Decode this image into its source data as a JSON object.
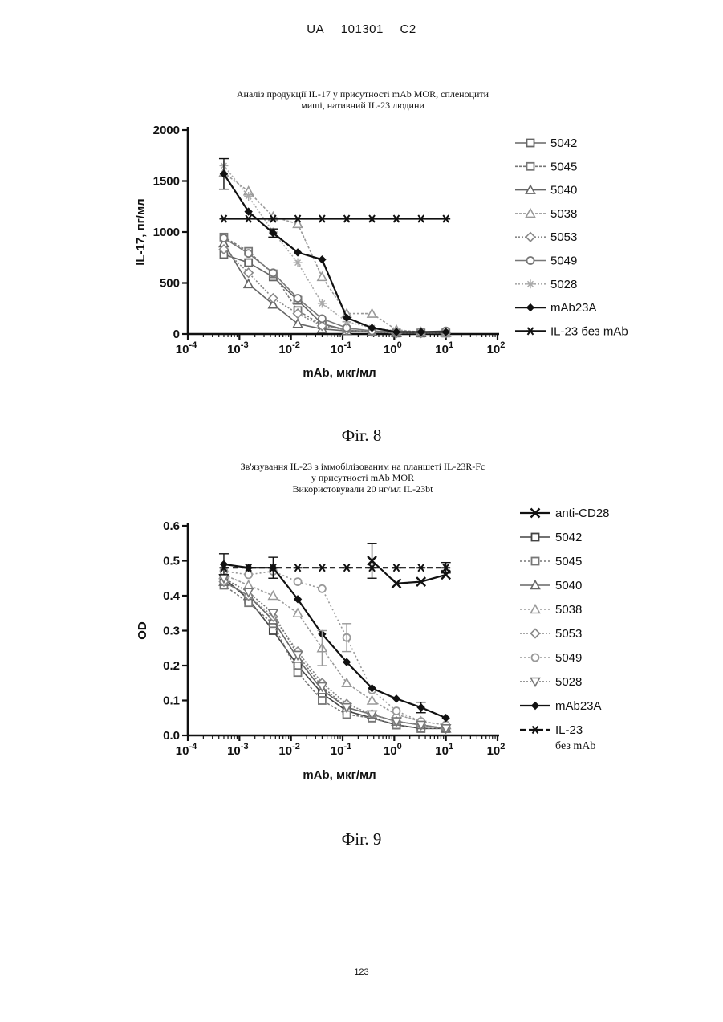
{
  "header": {
    "country": "UA",
    "number": "101301",
    "kind": "C2"
  },
  "page_number": "123",
  "colors": {
    "ink": "#111111",
    "dark": "#1a1a1a",
    "mid": "#555555",
    "light": "#888888",
    "pale": "#aaaaaa"
  },
  "chart_data": [
    {
      "type": "line",
      "title_lines": [
        "Аналіз продукції IL-17 у присутності mAb MOR, спленоцити",
        "миші, нативний IL-23 людини"
      ],
      "xlabel": "mAb, мкг/мл",
      "ylabel": "IL-17, пг/мл",
      "x_scale": "log",
      "xlim": [
        0.0001,
        100
      ],
      "ylim": [
        0,
        2000
      ],
      "x_ticks": [
        {
          "value": 0.0001,
          "base": "10",
          "exp": "-4"
        },
        {
          "value": 0.001,
          "base": "10",
          "exp": "-3"
        },
        {
          "value": 0.01,
          "base": "10",
          "exp": "-2"
        },
        {
          "value": 0.1,
          "base": "10",
          "exp": "-1"
        },
        {
          "value": 1,
          "base": "10",
          "exp": "0"
        },
        {
          "value": 10,
          "base": "10",
          "exp": "1"
        },
        {
          "value": 100,
          "base": "10",
          "exp": "2"
        }
      ],
      "y_ticks": [
        {
          "value": 0,
          "label": "0"
        },
        {
          "value": 500,
          "label": "500"
        },
        {
          "value": 1000,
          "label": "1000"
        },
        {
          "value": 1500,
          "label": "1500"
        },
        {
          "value": 2000,
          "label": "2000"
        }
      ],
      "grid": false,
      "legend_position": "right",
      "caption": "Фіг. 8",
      "series": [
        {
          "name": "5042",
          "color": "#666666",
          "marker": "square",
          "dash": "",
          "x": [
            0.0005,
            0.0015,
            0.0045,
            0.0135,
            0.04,
            0.12,
            0.37,
            1.1,
            3.3,
            10
          ],
          "y": [
            780,
            700,
            560,
            330,
            100,
            40,
            20,
            10,
            10,
            10
          ]
        },
        {
          "name": "5045",
          "color": "#777777",
          "marker": "square",
          "dash": "3,2",
          "x": [
            0.0005,
            0.0015,
            0.0045,
            0.0135,
            0.04,
            0.12,
            0.37,
            1.1,
            3.3,
            10
          ],
          "y": [
            950,
            810,
            590,
            230,
            90,
            40,
            20,
            10,
            10,
            10
          ]
        },
        {
          "name": "5040",
          "color": "#666666",
          "marker": "triangle",
          "dash": "",
          "x": [
            0.0005,
            0.0015,
            0.0045,
            0.0135,
            0.04,
            0.12,
            0.37,
            1.1,
            3.3,
            10
          ],
          "y": [
            890,
            490,
            290,
            100,
            50,
            30,
            20,
            10,
            10,
            10
          ]
        },
        {
          "name": "5038",
          "color": "#999999",
          "marker": "triangle",
          "dash": "3,2",
          "x": [
            0.0005,
            0.0015,
            0.0045,
            0.0135,
            0.04,
            0.12,
            0.37,
            1.1,
            3.3,
            10
          ],
          "y": [
            1580,
            1400,
            1150,
            1080,
            560,
            200,
            200,
            40,
            20,
            10
          ]
        },
        {
          "name": "5053",
          "color": "#888888",
          "marker": "diamond",
          "dash": "2,2",
          "x": [
            0.0005,
            0.0015,
            0.0045,
            0.0135,
            0.04,
            0.12,
            0.37,
            1.1,
            3.3,
            10
          ],
          "y": [
            830,
            600,
            350,
            200,
            80,
            40,
            20,
            10,
            10,
            10
          ]
        },
        {
          "name": "5049",
          "color": "#777777",
          "marker": "circle",
          "dash": "",
          "x": [
            0.0005,
            0.0015,
            0.0045,
            0.0135,
            0.04,
            0.12,
            0.37,
            1.1,
            3.3,
            10
          ],
          "y": [
            940,
            790,
            600,
            350,
            150,
            60,
            30,
            20,
            20,
            30
          ]
        },
        {
          "name": "5028",
          "color": "#aaaaaa",
          "marker": "star",
          "dash": "2,2",
          "x": [
            0.0005,
            0.0015,
            0.0045,
            0.0135,
            0.04,
            0.12,
            0.37,
            1.1,
            3.3,
            10
          ],
          "y": [
            1650,
            1350,
            1000,
            700,
            300,
            120,
            60,
            30,
            20,
            20
          ]
        },
        {
          "name": "mAb23A",
          "color": "#111111",
          "marker": "diamond-filled",
          "dash": "",
          "x": [
            0.0005,
            0.0015,
            0.0045,
            0.0135,
            0.04,
            0.12,
            0.37,
            1.1,
            3.3,
            10
          ],
          "y": [
            1570,
            1200,
            990,
            800,
            730,
            160,
            60,
            20,
            20,
            20
          ]
        },
        {
          "name": "IL-23 без mAb",
          "color": "#111111",
          "marker": "asterisk",
          "dash": "",
          "x": [
            0.0005,
            0.0015,
            0.0045,
            0.0135,
            0.04,
            0.12,
            0.37,
            1.1,
            3.3,
            10
          ],
          "y": [
            1130,
            1130,
            1130,
            1130,
            1130,
            1130,
            1130,
            1130,
            1130,
            1130
          ]
        }
      ],
      "error_bars": [
        {
          "series": "mAb23A",
          "x": 0.0005,
          "y": 1570,
          "plus_minus": 150
        },
        {
          "series": "mAb23A",
          "x": 0.0045,
          "y": 990,
          "plus_minus": 40
        }
      ]
    },
    {
      "type": "line",
      "title_lines": [
        "Зв'язування IL-23 з іммобілізованим на планшеті IL-23R-Fc",
        "у присутності mAb MOR",
        "Використовували 20 нг/мл IL-23bt"
      ],
      "xlabel": "mAb, мкг/мл",
      "ylabel": "OD",
      "x_scale": "log",
      "xlim": [
        0.0001,
        100
      ],
      "ylim": [
        0,
        0.6
      ],
      "x_ticks": [
        {
          "value": 0.0001,
          "base": "10",
          "exp": "-4"
        },
        {
          "value": 0.001,
          "base": "10",
          "exp": "-3"
        },
        {
          "value": 0.01,
          "base": "10",
          "exp": "-2"
        },
        {
          "value": 0.1,
          "base": "10",
          "exp": "-1"
        },
        {
          "value": 1,
          "base": "10",
          "exp": "0"
        },
        {
          "value": 10,
          "base": "10",
          "exp": "1"
        },
        {
          "value": 100,
          "base": "10",
          "exp": "2"
        }
      ],
      "y_ticks": [
        {
          "value": 0,
          "label": "0.0"
        },
        {
          "value": 0.1,
          "label": "0.1"
        },
        {
          "value": 0.2,
          "label": "0.2"
        },
        {
          "value": 0.3,
          "label": "0.3"
        },
        {
          "value": 0.4,
          "label": "0.4"
        },
        {
          "value": 0.5,
          "label": "0.5"
        },
        {
          "value": 0.6,
          "label": "0.6"
        }
      ],
      "grid": false,
      "legend_position": "right",
      "caption": "Фіг. 9",
      "series": [
        {
          "name": "anti-CD28",
          "color": "#111111",
          "marker": "x",
          "dash": "",
          "x": [
            0.37,
            1.1,
            3.3,
            10
          ],
          "y": [
            0.5,
            0.435,
            0.44,
            0.46
          ]
        },
        {
          "name": "5042",
          "color": "#444444",
          "marker": "square",
          "dash": "",
          "x": [
            0.0005,
            0.0015,
            0.0045,
            0.0135,
            0.04,
            0.12,
            0.37,
            1.1,
            3.3,
            10
          ],
          "y": [
            0.45,
            0.39,
            0.3,
            0.2,
            0.12,
            0.07,
            0.05,
            0.03,
            0.02,
            0.02
          ]
        },
        {
          "name": "5045",
          "color": "#777777",
          "marker": "square",
          "dash": "3,2",
          "x": [
            0.0005,
            0.0015,
            0.0045,
            0.0135,
            0.04,
            0.12,
            0.37,
            1.1,
            3.3,
            10
          ],
          "y": [
            0.43,
            0.38,
            0.32,
            0.18,
            0.1,
            0.06,
            0.05,
            0.03,
            0.02,
            0.02
          ]
        },
        {
          "name": "5040",
          "color": "#666666",
          "marker": "triangle",
          "dash": "",
          "x": [
            0.0005,
            0.0015,
            0.0045,
            0.0135,
            0.04,
            0.12,
            0.37,
            1.1,
            3.3,
            10
          ],
          "y": [
            0.44,
            0.4,
            0.33,
            0.22,
            0.13,
            0.08,
            0.06,
            0.04,
            0.03,
            0.02
          ]
        },
        {
          "name": "5038",
          "color": "#999999",
          "marker": "triangle",
          "dash": "3,2",
          "x": [
            0.0005,
            0.0015,
            0.0045,
            0.0135,
            0.04,
            0.12,
            0.37,
            1.1,
            3.3,
            10
          ],
          "y": [
            0.46,
            0.43,
            0.4,
            0.35,
            0.25,
            0.15,
            0.1,
            0.06,
            0.04,
            0.03
          ]
        },
        {
          "name": "5053",
          "color": "#888888",
          "marker": "diamond",
          "dash": "2,2",
          "x": [
            0.0005,
            0.0015,
            0.0045,
            0.0135,
            0.04,
            0.12,
            0.37,
            1.1,
            3.3,
            10
          ],
          "y": [
            0.44,
            0.4,
            0.34,
            0.24,
            0.15,
            0.09,
            0.06,
            0.04,
            0.03,
            0.02
          ]
        },
        {
          "name": "5049",
          "color": "#999999",
          "marker": "circle",
          "dash": "2,3",
          "x": [
            0.0005,
            0.0015,
            0.0045,
            0.0135,
            0.04,
            0.12,
            0.37,
            1.1,
            3.3,
            10
          ],
          "y": [
            0.47,
            0.46,
            0.47,
            0.44,
            0.42,
            0.28,
            0.13,
            0.07,
            0.04,
            0.03
          ]
        },
        {
          "name": "5028",
          "color": "#777777",
          "marker": "triangle-down",
          "dash": "2,2",
          "x": [
            0.0005,
            0.0015,
            0.0045,
            0.0135,
            0.04,
            0.12,
            0.37,
            1.1,
            3.3,
            10
          ],
          "y": [
            0.45,
            0.41,
            0.35,
            0.23,
            0.14,
            0.08,
            0.06,
            0.04,
            0.03,
            0.02
          ]
        },
        {
          "name": "mAb23A",
          "color": "#111111",
          "marker": "diamond-filled",
          "dash": "",
          "x": [
            0.0005,
            0.0015,
            0.0045,
            0.0135,
            0.04,
            0.12,
            0.37,
            1.1,
            3.3,
            10
          ],
          "y": [
            0.49,
            0.48,
            0.48,
            0.39,
            0.29,
            0.21,
            0.135,
            0.105,
            0.08,
            0.05
          ]
        },
        {
          "name": "IL-23 без mAb",
          "color": "#111111",
          "marker": "asterisk",
          "dash": "7,4",
          "x": [
            0.0005,
            0.0015,
            0.0045,
            0.0135,
            0.04,
            0.12,
            0.37,
            1.1,
            3.3,
            10
          ],
          "y": [
            0.48,
            0.48,
            0.48,
            0.48,
            0.48,
            0.48,
            0.48,
            0.48,
            0.48,
            0.48
          ]
        }
      ],
      "error_bars": [
        {
          "series": "mAb23A",
          "x": 0.0005,
          "y": 0.49,
          "plus_minus": 0.03
        },
        {
          "series": "mAb23A",
          "x": 0.0045,
          "y": 0.48,
          "plus_minus": 0.03
        },
        {
          "series": "anti-CD28",
          "x": 0.37,
          "y": 0.5,
          "plus_minus": 0.05
        },
        {
          "series": "IL-23 без mAb",
          "x": 10,
          "y": 0.48,
          "plus_minus": 0.015
        },
        {
          "series": "mAb23A",
          "x": 3.3,
          "y": 0.08,
          "plus_minus": 0.015
        },
        {
          "series": "5038",
          "x": 0.04,
          "y": 0.25,
          "plus_minus": 0.05
        },
        {
          "series": "5049",
          "x": 0.12,
          "y": 0.28,
          "plus_minus": 0.04
        }
      ]
    }
  ]
}
